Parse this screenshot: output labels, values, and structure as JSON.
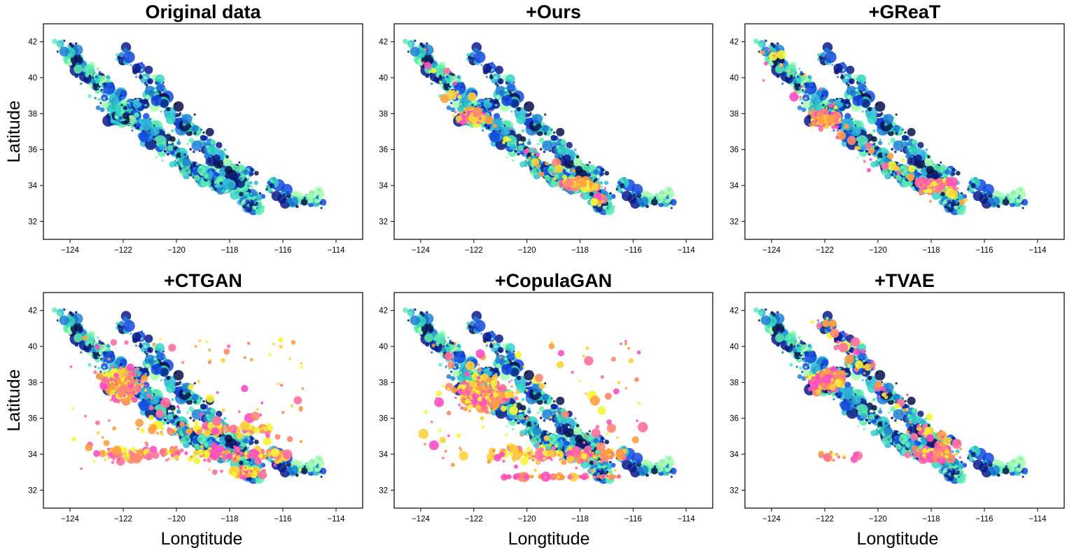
{
  "figure": {
    "ylabel": "Latitude",
    "xlabel": "Longtitude"
  },
  "colors": {
    "original_palette": [
      "#5cf0b0",
      "#33d6c4",
      "#2fb7d9",
      "#1f7fd6",
      "#1448e0",
      "#0b1a8a",
      "#06104a",
      "#a8ffb0"
    ],
    "synthetic_palette": [
      "#ff4fc1",
      "#ff6fa0",
      "#ff8a70",
      "#ffa040",
      "#ffd23a",
      "#f5f53a"
    ]
  },
  "chart_data": [
    {
      "type": "scatter",
      "title": "Original data",
      "synthetic": "none",
      "xlim": [
        -125,
        -113
      ],
      "ylim": [
        31,
        43
      ],
      "xticks": [
        -124,
        -122,
        -120,
        -118,
        -116,
        -114
      ],
      "yticks": [
        32,
        34,
        36,
        38,
        40,
        42
      ]
    },
    {
      "type": "scatter",
      "title": "+Ours",
      "synthetic": "ours",
      "xlim": [
        -125,
        -113
      ],
      "ylim": [
        31,
        43
      ],
      "xticks": [
        -124,
        -122,
        -120,
        -118,
        -116,
        -114
      ],
      "yticks": [
        32,
        34,
        36,
        38,
        40,
        42
      ]
    },
    {
      "type": "scatter",
      "title": "+GReaT",
      "synthetic": "great",
      "xlim": [
        -125,
        -113
      ],
      "ylim": [
        31,
        43
      ],
      "xticks": [
        -124,
        -122,
        -120,
        -118,
        -116,
        -114
      ],
      "yticks": [
        32,
        34,
        36,
        38,
        40,
        42
      ]
    },
    {
      "type": "scatter",
      "title": "+CTGAN",
      "synthetic": "ctgan",
      "xlim": [
        -125,
        -113
      ],
      "ylim": [
        31,
        43
      ],
      "xticks": [
        -124,
        -122,
        -120,
        -118,
        -116,
        -114
      ],
      "yticks": [
        32,
        34,
        36,
        38,
        40,
        42
      ]
    },
    {
      "type": "scatter",
      "title": "+CopulaGAN",
      "synthetic": "copulagan",
      "xlim": [
        -125,
        -113
      ],
      "ylim": [
        31,
        43
      ],
      "xticks": [
        -124,
        -122,
        -120,
        -118,
        -116,
        -114
      ],
      "yticks": [
        32,
        34,
        36,
        38,
        40,
        42
      ]
    },
    {
      "type": "scatter",
      "title": "+TVAE",
      "synthetic": "tvae",
      "xlim": [
        -125,
        -113
      ],
      "ylim": [
        31,
        43
      ],
      "xticks": [
        -124,
        -122,
        -120,
        -118,
        -116,
        -114
      ],
      "yticks": [
        32,
        34,
        36,
        38,
        40,
        42
      ]
    }
  ]
}
